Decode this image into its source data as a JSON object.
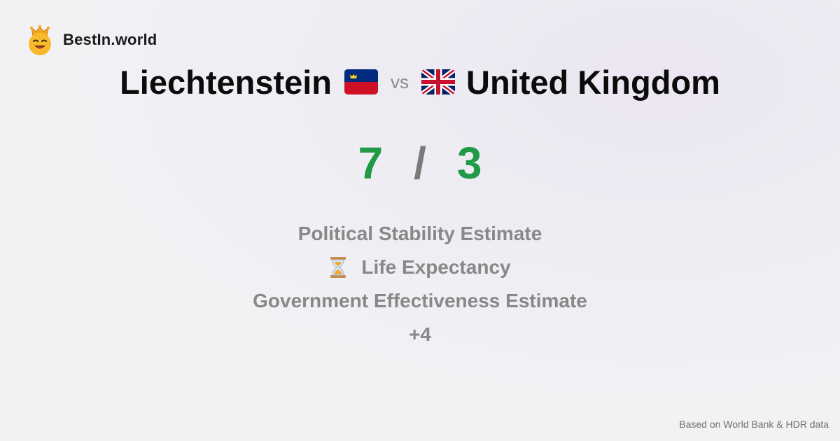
{
  "brand": {
    "name": "BestIn.world",
    "icon": "smiling-face-with-crown-icon"
  },
  "comparison": {
    "left_country": "Liechtenstein",
    "left_flag_icon": "liechtenstein-flag-icon",
    "vs_label": "vs",
    "right_flag_icon": "united-kingdom-flag-icon",
    "right_country": "United Kingdom"
  },
  "score": {
    "left": "7",
    "separator": "/",
    "right": "3"
  },
  "categories": [
    {
      "label": "Political Stability Estimate"
    },
    {
      "label": "Life Expectancy",
      "icon": "hourglass-icon"
    },
    {
      "label": "Government Effectiveness Estimate"
    },
    {
      "label": "+4"
    }
  ],
  "footer": {
    "source": "Based on World Bank & HDR data"
  },
  "colors": {
    "score_green": "#1f9a46",
    "category_gray": "#888888",
    "separator_gray": "#7a7a7a"
  }
}
